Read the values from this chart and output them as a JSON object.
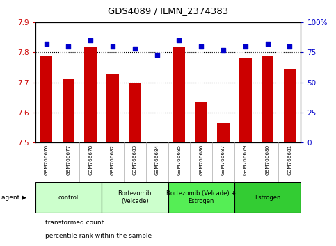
{
  "title": "GDS4089 / ILMN_2374383",
  "samples": [
    "GSM766676",
    "GSM766677",
    "GSM766678",
    "GSM766682",
    "GSM766683",
    "GSM766684",
    "GSM766685",
    "GSM766686",
    "GSM766687",
    "GSM766679",
    "GSM766680",
    "GSM766681"
  ],
  "bar_values": [
    7.79,
    7.71,
    7.82,
    7.73,
    7.7,
    7.502,
    7.82,
    7.635,
    7.565,
    7.78,
    7.79,
    7.745
  ],
  "percentile_values": [
    82,
    80,
    85,
    80,
    78,
    73,
    85,
    80,
    77,
    80,
    82,
    80
  ],
  "ylim_left": [
    7.5,
    7.9
  ],
  "ylim_right": [
    0,
    100
  ],
  "yticks_left": [
    7.5,
    7.6,
    7.7,
    7.8,
    7.9
  ],
  "yticks_right": [
    0,
    25,
    50,
    75,
    100
  ],
  "bar_color": "#cc0000",
  "dot_color": "#0000cc",
  "bar_width": 0.55,
  "groups": [
    {
      "label": "control",
      "start": 0,
      "end": 3,
      "color": "#ccffcc"
    },
    {
      "label": "Bortezomib\n(Velcade)",
      "start": 3,
      "end": 6,
      "color": "#ccffcc"
    },
    {
      "label": "Bortezomib (Velcade) +\nEstrogen",
      "start": 6,
      "end": 9,
      "color": "#55ee55"
    },
    {
      "label": "Estrogen",
      "start": 9,
      "end": 12,
      "color": "#33cc33"
    }
  ],
  "tick_label_color_left": "#cc0000",
  "tick_label_color_right": "#0000cc",
  "plot_bg_color": "#ffffff",
  "sample_bg_color": "#d0d0d0",
  "spine_color": "#000000",
  "legend_items": [
    {
      "color": "#cc0000",
      "label": "transformed count"
    },
    {
      "color": "#0000cc",
      "label": "percentile rank within the sample"
    }
  ]
}
